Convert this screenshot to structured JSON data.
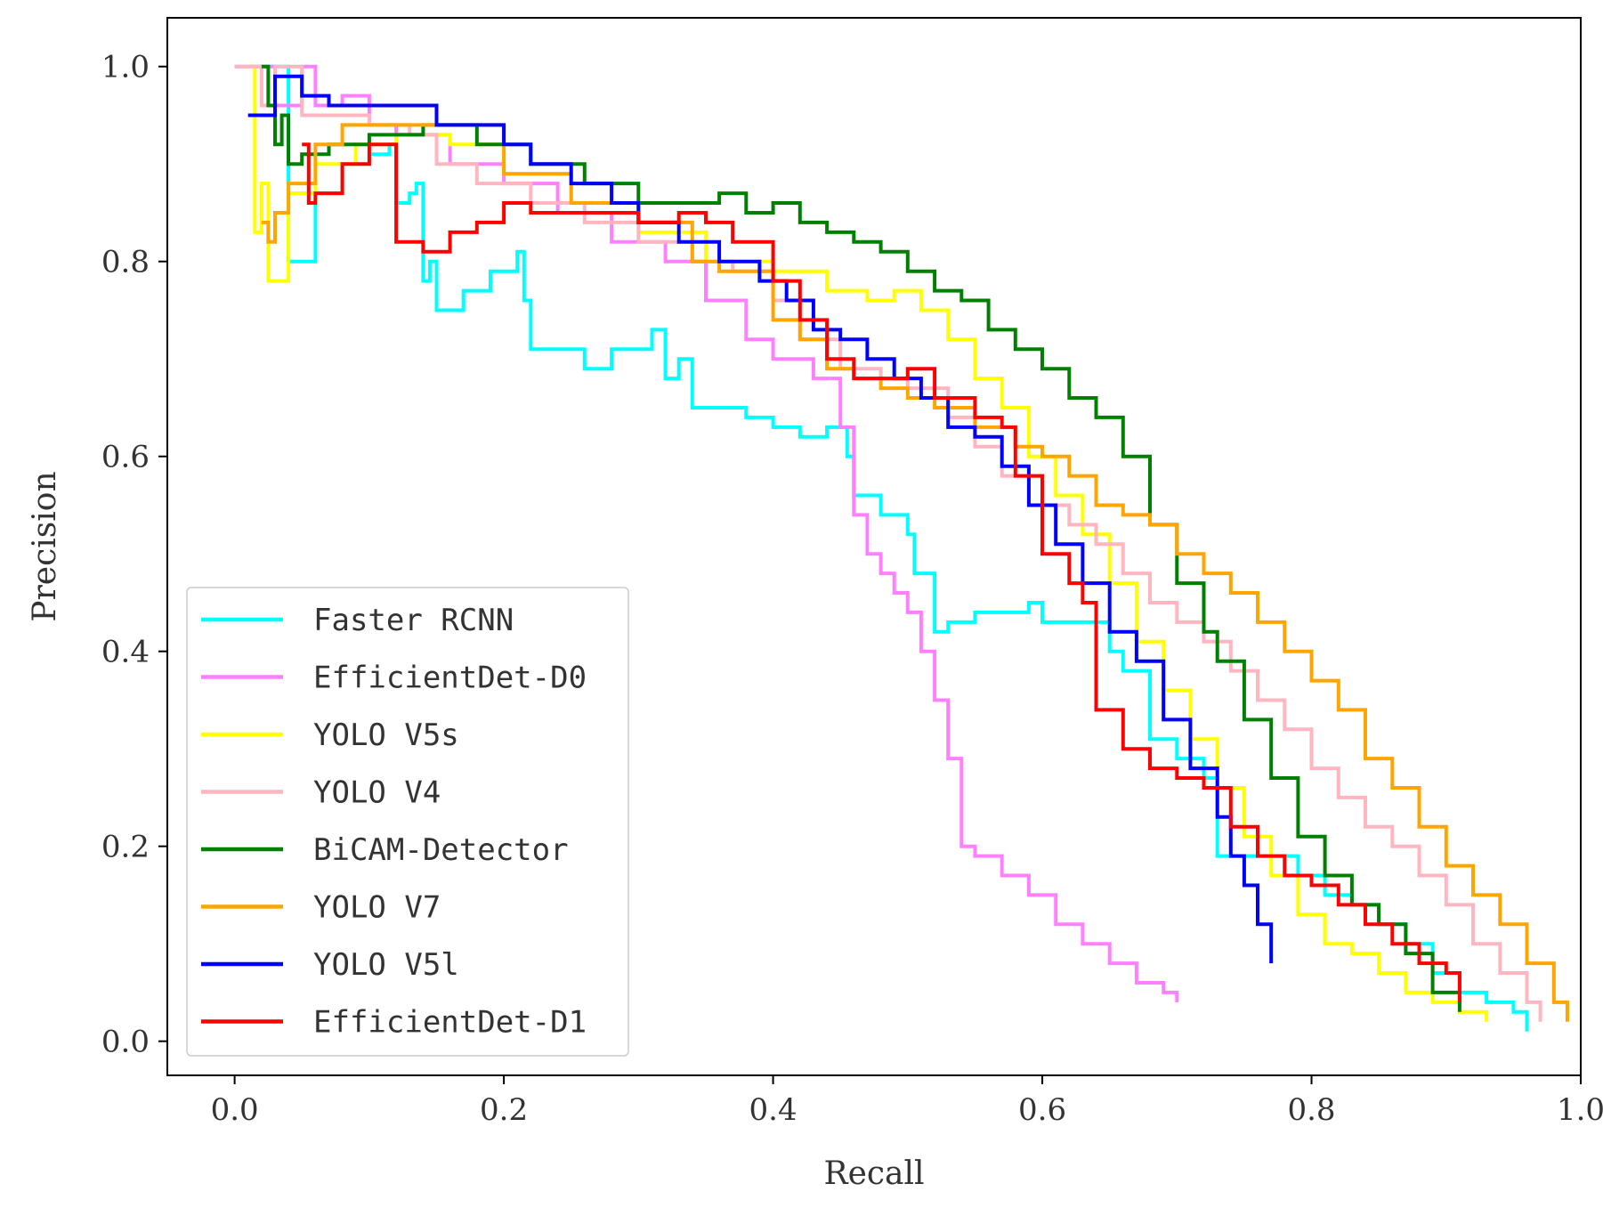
{
  "chart_data": {
    "type": "line",
    "title": "",
    "xlabel": "Recall",
    "ylabel": "Precision",
    "xlim": [
      -0.05,
      1.0
    ],
    "ylim": [
      -0.035,
      1.05
    ],
    "xticks": [
      0.0,
      0.2,
      0.4,
      0.6,
      0.8,
      1.0
    ],
    "xtick_labels": [
      "0.0",
      "0.2",
      "0.4",
      "0.6",
      "0.8",
      "1.0"
    ],
    "yticks": [
      0.0,
      0.2,
      0.4,
      0.6,
      0.8,
      1.0
    ],
    "ytick_labels": [
      "0.0",
      "0.2",
      "0.4",
      "0.6",
      "0.8",
      "1.0"
    ],
    "grid": false,
    "legend_position": "lower-left",
    "series": [
      {
        "name": "Faster RCNN",
        "color": "#00ffff",
        "x": [
          0.01,
          0.035,
          0.04,
          0.06,
          0.08,
          0.1,
          0.115,
          0.12,
          0.13,
          0.135,
          0.14,
          0.145,
          0.15,
          0.17,
          0.19,
          0.21,
          0.215,
          0.22,
          0.25,
          0.26,
          0.28,
          0.31,
          0.32,
          0.33,
          0.34,
          0.36,
          0.38,
          0.4,
          0.42,
          0.44,
          0.455,
          0.46,
          0.48,
          0.5,
          0.505,
          0.52,
          0.53,
          0.55,
          0.58,
          0.59,
          0.6,
          0.63,
          0.65,
          0.66,
          0.68,
          0.7,
          0.72,
          0.73,
          0.75,
          0.77,
          0.79,
          0.81,
          0.83,
          0.85,
          0.87,
          0.89,
          0.91,
          0.93,
          0.95,
          0.96
        ],
        "y": [
          1.0,
          1.0,
          0.8,
          0.87,
          0.9,
          0.91,
          0.92,
          0.86,
          0.87,
          0.88,
          0.78,
          0.8,
          0.75,
          0.77,
          0.79,
          0.81,
          0.76,
          0.71,
          0.71,
          0.69,
          0.71,
          0.73,
          0.68,
          0.7,
          0.65,
          0.65,
          0.64,
          0.63,
          0.62,
          0.63,
          0.6,
          0.56,
          0.54,
          0.52,
          0.48,
          0.42,
          0.43,
          0.44,
          0.44,
          0.45,
          0.43,
          0.43,
          0.4,
          0.38,
          0.31,
          0.29,
          0.27,
          0.19,
          0.19,
          0.19,
          0.17,
          0.15,
          0.14,
          0.12,
          0.1,
          0.07,
          0.05,
          0.04,
          0.03,
          0.01
        ]
      },
      {
        "name": "EfficientDet-D0",
        "color": "#ff80ff",
        "x": [
          0.0,
          0.02,
          0.03,
          0.05,
          0.06,
          0.08,
          0.1,
          0.12,
          0.14,
          0.16,
          0.2,
          0.24,
          0.28,
          0.32,
          0.35,
          0.38,
          0.4,
          0.43,
          0.45,
          0.46,
          0.47,
          0.48,
          0.49,
          0.5,
          0.51,
          0.52,
          0.53,
          0.54,
          0.55,
          0.57,
          0.59,
          0.61,
          0.63,
          0.65,
          0.67,
          0.69,
          0.7
        ],
        "y": [
          1.0,
          1.0,
          0.96,
          1.0,
          0.96,
          0.97,
          0.94,
          0.93,
          0.93,
          0.9,
          0.88,
          0.85,
          0.82,
          0.8,
          0.76,
          0.72,
          0.7,
          0.68,
          0.63,
          0.54,
          0.5,
          0.48,
          0.46,
          0.44,
          0.4,
          0.35,
          0.29,
          0.2,
          0.19,
          0.17,
          0.15,
          0.12,
          0.1,
          0.08,
          0.06,
          0.05,
          0.04
        ]
      },
      {
        "name": "YOLO V5s",
        "color": "#ffff00",
        "x": [
          0.01,
          0.015,
          0.02,
          0.025,
          0.04,
          0.06,
          0.09,
          0.12,
          0.16,
          0.2,
          0.25,
          0.3,
          0.35,
          0.4,
          0.44,
          0.47,
          0.49,
          0.51,
          0.53,
          0.55,
          0.57,
          0.59,
          0.61,
          0.63,
          0.65,
          0.67,
          0.69,
          0.71,
          0.73,
          0.75,
          0.77,
          0.79,
          0.81,
          0.83,
          0.85,
          0.87,
          0.89,
          0.91,
          0.93
        ],
        "y": [
          1.0,
          0.83,
          0.88,
          0.78,
          0.87,
          0.9,
          0.92,
          0.93,
          0.92,
          0.89,
          0.86,
          0.83,
          0.8,
          0.79,
          0.77,
          0.76,
          0.77,
          0.75,
          0.72,
          0.68,
          0.65,
          0.6,
          0.56,
          0.52,
          0.47,
          0.41,
          0.36,
          0.31,
          0.26,
          0.21,
          0.17,
          0.13,
          0.1,
          0.09,
          0.07,
          0.05,
          0.04,
          0.03,
          0.02
        ]
      },
      {
        "name": "YOLO V4",
        "color": "#ffb6c1",
        "x": [
          0.0,
          0.02,
          0.03,
          0.05,
          0.07,
          0.1,
          0.13,
          0.15,
          0.18,
          0.22,
          0.26,
          0.3,
          0.34,
          0.37,
          0.4,
          0.42,
          0.45,
          0.48,
          0.5,
          0.53,
          0.55,
          0.57,
          0.6,
          0.62,
          0.64,
          0.66,
          0.68,
          0.7,
          0.72,
          0.74,
          0.76,
          0.78,
          0.8,
          0.82,
          0.84,
          0.86,
          0.88,
          0.9,
          0.92,
          0.94,
          0.96,
          0.97
        ],
        "y": [
          1.0,
          0.96,
          1.0,
          0.95,
          0.95,
          0.94,
          0.93,
          0.9,
          0.88,
          0.86,
          0.84,
          0.82,
          0.8,
          0.79,
          0.76,
          0.72,
          0.69,
          0.68,
          0.67,
          0.64,
          0.61,
          0.58,
          0.55,
          0.53,
          0.51,
          0.48,
          0.45,
          0.43,
          0.41,
          0.38,
          0.35,
          0.32,
          0.28,
          0.25,
          0.22,
          0.2,
          0.17,
          0.14,
          0.1,
          0.07,
          0.04,
          0.02
        ]
      },
      {
        "name": "BiCAM-Detector",
        "color": "#008000",
        "x": [
          0.02,
          0.025,
          0.03,
          0.035,
          0.04,
          0.05,
          0.07,
          0.1,
          0.14,
          0.18,
          0.22,
          0.26,
          0.3,
          0.33,
          0.36,
          0.38,
          0.4,
          0.42,
          0.44,
          0.46,
          0.48,
          0.5,
          0.52,
          0.54,
          0.56,
          0.58,
          0.6,
          0.62,
          0.64,
          0.66,
          0.68,
          0.7,
          0.72,
          0.73,
          0.75,
          0.77,
          0.79,
          0.81,
          0.83,
          0.85,
          0.87,
          0.89,
          0.91
        ],
        "y": [
          1.0,
          0.96,
          0.92,
          0.95,
          0.9,
          0.91,
          0.92,
          0.93,
          0.94,
          0.92,
          0.9,
          0.88,
          0.86,
          0.86,
          0.87,
          0.85,
          0.86,
          0.84,
          0.83,
          0.82,
          0.81,
          0.79,
          0.77,
          0.76,
          0.73,
          0.71,
          0.69,
          0.66,
          0.64,
          0.6,
          0.53,
          0.47,
          0.42,
          0.39,
          0.33,
          0.27,
          0.21,
          0.17,
          0.14,
          0.12,
          0.09,
          0.05,
          0.03
        ]
      },
      {
        "name": "YOLO V7",
        "color": "#ffa500",
        "x": [
          0.02,
          0.025,
          0.03,
          0.04,
          0.06,
          0.08,
          0.12,
          0.16,
          0.2,
          0.25,
          0.3,
          0.34,
          0.36,
          0.38,
          0.4,
          0.42,
          0.44,
          0.46,
          0.48,
          0.5,
          0.52,
          0.55,
          0.58,
          0.6,
          0.62,
          0.64,
          0.66,
          0.68,
          0.7,
          0.72,
          0.74,
          0.76,
          0.78,
          0.8,
          0.82,
          0.84,
          0.86,
          0.88,
          0.9,
          0.92,
          0.94,
          0.96,
          0.98,
          0.99
        ],
        "y": [
          0.84,
          0.82,
          0.85,
          0.88,
          0.92,
          0.94,
          0.94,
          0.94,
          0.89,
          0.86,
          0.84,
          0.8,
          0.79,
          0.79,
          0.74,
          0.72,
          0.69,
          0.68,
          0.67,
          0.66,
          0.65,
          0.63,
          0.61,
          0.6,
          0.58,
          0.55,
          0.54,
          0.53,
          0.5,
          0.48,
          0.46,
          0.43,
          0.4,
          0.37,
          0.34,
          0.29,
          0.26,
          0.22,
          0.18,
          0.15,
          0.12,
          0.08,
          0.04,
          0.02
        ]
      },
      {
        "name": "YOLO V5l",
        "color": "#0000ff",
        "x": [
          0.01,
          0.03,
          0.05,
          0.07,
          0.1,
          0.13,
          0.15,
          0.18,
          0.2,
          0.22,
          0.25,
          0.28,
          0.3,
          0.33,
          0.36,
          0.39,
          0.41,
          0.43,
          0.45,
          0.47,
          0.49,
          0.51,
          0.53,
          0.55,
          0.57,
          0.59,
          0.61,
          0.63,
          0.65,
          0.67,
          0.69,
          0.71,
          0.73,
          0.74,
          0.75,
          0.76,
          0.77
        ],
        "y": [
          0.95,
          0.99,
          0.97,
          0.96,
          0.96,
          0.96,
          0.94,
          0.94,
          0.92,
          0.9,
          0.88,
          0.86,
          0.84,
          0.82,
          0.8,
          0.78,
          0.76,
          0.73,
          0.72,
          0.7,
          0.68,
          0.66,
          0.63,
          0.62,
          0.59,
          0.55,
          0.51,
          0.47,
          0.42,
          0.39,
          0.33,
          0.28,
          0.23,
          0.19,
          0.16,
          0.12,
          0.08
        ]
      },
      {
        "name": "EfficientDet-D1",
        "color": "#ff0000",
        "x": [
          0.05,
          0.055,
          0.06,
          0.08,
          0.1,
          0.12,
          0.14,
          0.16,
          0.18,
          0.2,
          0.22,
          0.26,
          0.3,
          0.33,
          0.35,
          0.37,
          0.4,
          0.42,
          0.44,
          0.46,
          0.48,
          0.5,
          0.52,
          0.55,
          0.57,
          0.58,
          0.6,
          0.62,
          0.63,
          0.64,
          0.66,
          0.68,
          0.7,
          0.72,
          0.74,
          0.76,
          0.78,
          0.8,
          0.82,
          0.84,
          0.86,
          0.88,
          0.9,
          0.91
        ],
        "y": [
          0.92,
          0.86,
          0.87,
          0.9,
          0.92,
          0.82,
          0.81,
          0.83,
          0.84,
          0.86,
          0.85,
          0.85,
          0.84,
          0.85,
          0.84,
          0.82,
          0.78,
          0.74,
          0.7,
          0.68,
          0.68,
          0.69,
          0.66,
          0.64,
          0.63,
          0.58,
          0.5,
          0.47,
          0.45,
          0.34,
          0.3,
          0.28,
          0.27,
          0.26,
          0.22,
          0.19,
          0.17,
          0.16,
          0.14,
          0.12,
          0.1,
          0.08,
          0.07,
          0.04
        ]
      }
    ]
  }
}
